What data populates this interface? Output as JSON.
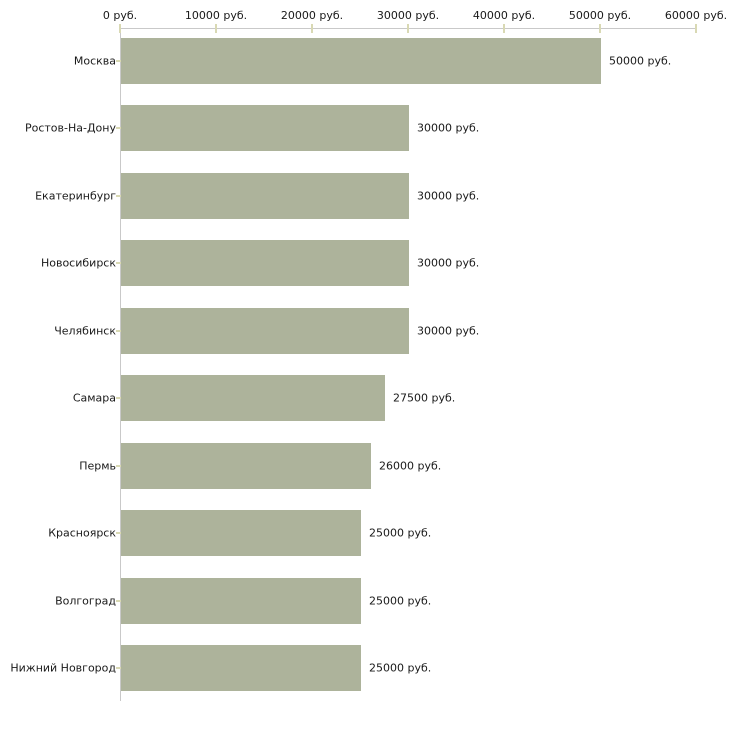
{
  "chart_data": {
    "type": "bar",
    "orientation": "horizontal",
    "title": "",
    "xlabel": "",
    "ylabel": "",
    "unit": "руб.",
    "xlim": [
      0,
      60000
    ],
    "grid": false,
    "legend": null,
    "x_ticks": [
      0,
      10000,
      20000,
      30000,
      40000,
      50000,
      60000
    ],
    "x_tick_labels": [
      "0 руб.",
      "10000 руб.",
      "20000 руб.",
      "30000 руб.",
      "40000 руб.",
      "50000 руб.",
      "60000 руб."
    ],
    "categories": [
      "Москва",
      "Ростов-На-Дону",
      "Екатеринбург",
      "Новосибирск",
      "Челябинск",
      "Самара",
      "Пермь",
      "Красноярск",
      "Волгоград",
      "Нижний Новгород"
    ],
    "values": [
      50000,
      30000,
      30000,
      30000,
      30000,
      27500,
      26000,
      25000,
      25000,
      25000
    ],
    "value_labels": [
      "50000 руб.",
      "30000 руб.",
      "30000 руб.",
      "30000 руб.",
      "30000 руб.",
      "27500 руб.",
      "26000 руб.",
      "25000 руб.",
      "25000 руб.",
      "25000 руб."
    ],
    "colors": {
      "bar": "#adb39b",
      "axis": "#c9c9c9",
      "tick": "#d9d9b4",
      "text": "#1a1a1a",
      "background": "#ffffff"
    }
  }
}
